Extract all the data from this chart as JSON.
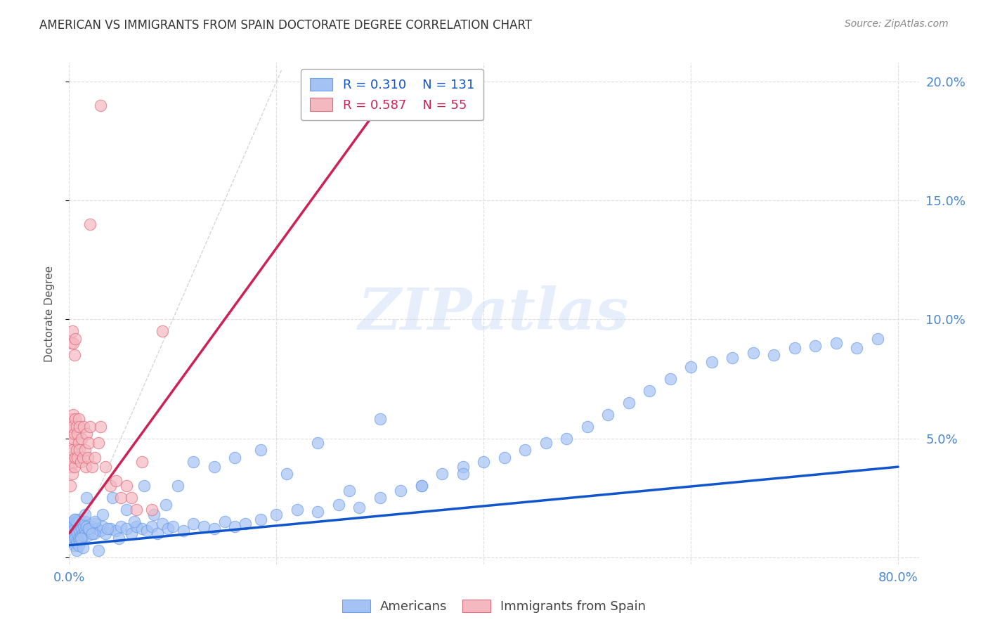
{
  "title": "AMERICAN VS IMMIGRANTS FROM SPAIN DOCTORATE DEGREE CORRELATION CHART",
  "source": "Source: ZipAtlas.com",
  "ylabel": "Doctorate Degree",
  "xlim": [
    0.0,
    0.82
  ],
  "ylim": [
    -0.003,
    0.208
  ],
  "xticks": [
    0.0,
    0.2,
    0.4,
    0.6,
    0.8
  ],
  "yticks": [
    0.0,
    0.05,
    0.1,
    0.15,
    0.2
  ],
  "blue_R": 0.31,
  "blue_N": 131,
  "pink_R": 0.587,
  "pink_N": 55,
  "blue_color": "#a4c2f4",
  "pink_color": "#f4b8c1",
  "blue_edge_color": "#6d9eeb",
  "pink_edge_color": "#e06c7c",
  "blue_line_color": "#1155cc",
  "pink_line_color": "#cc2255",
  "watermark": "ZIPatlas",
  "legend_label_blue": "Americans",
  "legend_label_pink": "Immigrants from Spain",
  "background_color": "#ffffff",
  "grid_color": "#dddddd",
  "title_color": "#333333",
  "axis_label_color": "#4a86c8",
  "blue_scatter_x": [
    0.001,
    0.002,
    0.002,
    0.003,
    0.003,
    0.003,
    0.004,
    0.004,
    0.004,
    0.005,
    0.005,
    0.005,
    0.006,
    0.006,
    0.006,
    0.007,
    0.007,
    0.007,
    0.008,
    0.008,
    0.008,
    0.009,
    0.009,
    0.009,
    0.01,
    0.01,
    0.01,
    0.011,
    0.011,
    0.012,
    0.012,
    0.013,
    0.013,
    0.014,
    0.014,
    0.015,
    0.015,
    0.016,
    0.017,
    0.018,
    0.019,
    0.02,
    0.022,
    0.024,
    0.025,
    0.027,
    0.03,
    0.032,
    0.035,
    0.04,
    0.045,
    0.05,
    0.055,
    0.06,
    0.065,
    0.07,
    0.075,
    0.08,
    0.085,
    0.09,
    0.095,
    0.1,
    0.11,
    0.12,
    0.13,
    0.14,
    0.15,
    0.16,
    0.17,
    0.185,
    0.2,
    0.22,
    0.24,
    0.26,
    0.28,
    0.3,
    0.32,
    0.34,
    0.36,
    0.38,
    0.4,
    0.42,
    0.44,
    0.46,
    0.48,
    0.5,
    0.52,
    0.54,
    0.56,
    0.58,
    0.6,
    0.62,
    0.64,
    0.66,
    0.68,
    0.7,
    0.72,
    0.74,
    0.76,
    0.78,
    0.005,
    0.007,
    0.009,
    0.011,
    0.013,
    0.015,
    0.017,
    0.019,
    0.022,
    0.025,
    0.028,
    0.032,
    0.037,
    0.042,
    0.048,
    0.055,
    0.063,
    0.072,
    0.082,
    0.093,
    0.105,
    0.12,
    0.14,
    0.16,
    0.185,
    0.21,
    0.24,
    0.27,
    0.3,
    0.34,
    0.38
  ],
  "blue_scatter_y": [
    0.01,
    0.008,
    0.012,
    0.006,
    0.009,
    0.013,
    0.007,
    0.011,
    0.015,
    0.005,
    0.009,
    0.014,
    0.008,
    0.012,
    0.016,
    0.007,
    0.011,
    0.015,
    0.006,
    0.01,
    0.014,
    0.008,
    0.012,
    0.016,
    0.007,
    0.011,
    0.015,
    0.009,
    0.013,
    0.008,
    0.012,
    0.01,
    0.014,
    0.009,
    0.013,
    0.011,
    0.015,
    0.01,
    0.013,
    0.009,
    0.012,
    0.011,
    0.013,
    0.01,
    0.014,
    0.012,
    0.011,
    0.013,
    0.01,
    0.012,
    0.011,
    0.013,
    0.012,
    0.01,
    0.013,
    0.012,
    0.011,
    0.013,
    0.01,
    0.014,
    0.012,
    0.013,
    0.011,
    0.014,
    0.013,
    0.012,
    0.015,
    0.013,
    0.014,
    0.016,
    0.018,
    0.02,
    0.019,
    0.022,
    0.021,
    0.025,
    0.028,
    0.03,
    0.035,
    0.038,
    0.04,
    0.042,
    0.045,
    0.048,
    0.05,
    0.055,
    0.06,
    0.065,
    0.07,
    0.075,
    0.08,
    0.082,
    0.084,
    0.086,
    0.085,
    0.088,
    0.089,
    0.09,
    0.088,
    0.092,
    0.016,
    0.003,
    0.005,
    0.008,
    0.004,
    0.018,
    0.025,
    0.012,
    0.01,
    0.015,
    0.003,
    0.018,
    0.012,
    0.025,
    0.008,
    0.02,
    0.015,
    0.03,
    0.018,
    0.022,
    0.03,
    0.04,
    0.038,
    0.042,
    0.045,
    0.035,
    0.048,
    0.028,
    0.058,
    0.03,
    0.035
  ],
  "pink_scatter_x": [
    0.001,
    0.001,
    0.001,
    0.002,
    0.002,
    0.002,
    0.003,
    0.003,
    0.003,
    0.004,
    0.004,
    0.004,
    0.005,
    0.005,
    0.006,
    0.006,
    0.007,
    0.007,
    0.008,
    0.008,
    0.009,
    0.009,
    0.01,
    0.01,
    0.011,
    0.012,
    0.013,
    0.014,
    0.015,
    0.016,
    0.017,
    0.018,
    0.019,
    0.02,
    0.022,
    0.025,
    0.028,
    0.03,
    0.035,
    0.04,
    0.045,
    0.05,
    0.055,
    0.06,
    0.065,
    0.07,
    0.08,
    0.09,
    0.002,
    0.003,
    0.004,
    0.005,
    0.006,
    0.02,
    0.03
  ],
  "pink_scatter_y": [
    0.03,
    0.042,
    0.055,
    0.038,
    0.048,
    0.058,
    0.035,
    0.045,
    0.055,
    0.04,
    0.05,
    0.06,
    0.038,
    0.052,
    0.042,
    0.058,
    0.045,
    0.055,
    0.042,
    0.052,
    0.048,
    0.058,
    0.045,
    0.055,
    0.04,
    0.05,
    0.042,
    0.055,
    0.045,
    0.038,
    0.052,
    0.042,
    0.048,
    0.055,
    0.038,
    0.042,
    0.048,
    0.055,
    0.038,
    0.03,
    0.032,
    0.025,
    0.03,
    0.025,
    0.02,
    0.04,
    0.02,
    0.095,
    0.09,
    0.095,
    0.09,
    0.085,
    0.092,
    0.14,
    0.19
  ],
  "blue_trend_x": [
    0.0,
    0.8
  ],
  "blue_trend_y": [
    0.005,
    0.038
  ],
  "pink_trend_x": [
    0.0,
    0.3
  ],
  "pink_trend_y": [
    0.01,
    0.19
  ],
  "ref_line_x": [
    0.0,
    0.205
  ],
  "ref_line_y": [
    0.0,
    0.205
  ]
}
